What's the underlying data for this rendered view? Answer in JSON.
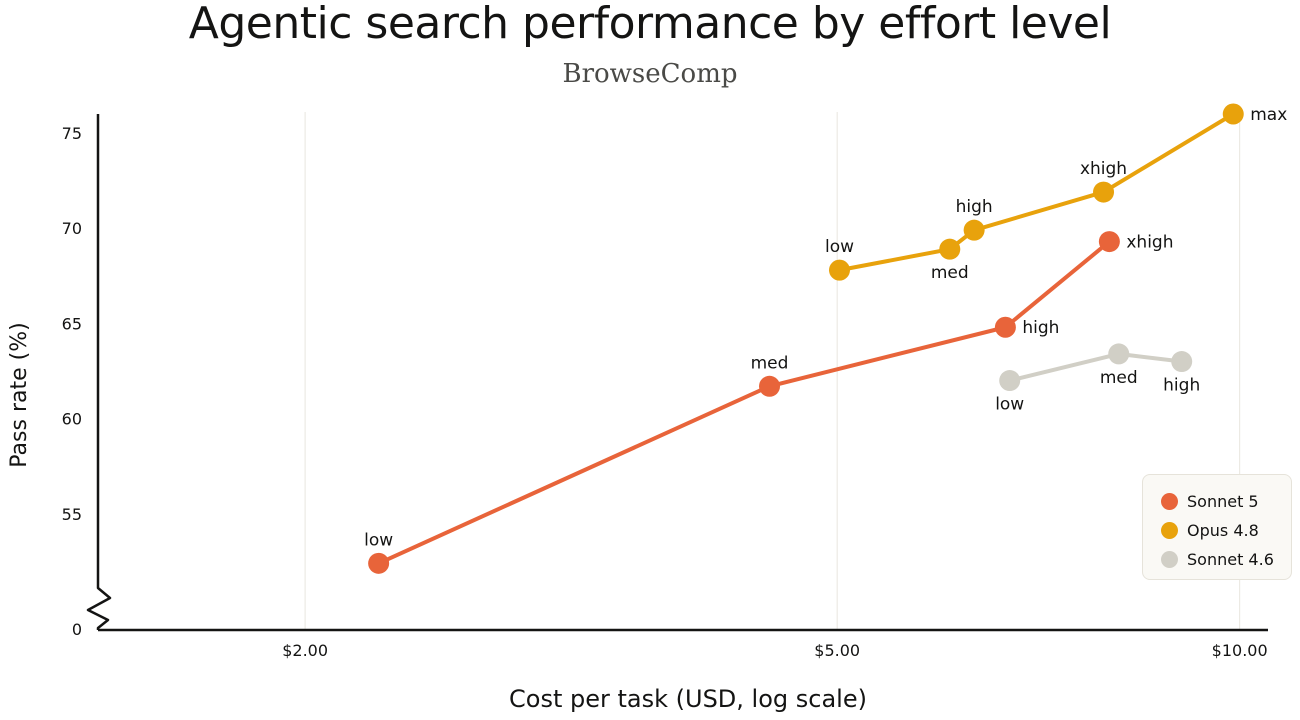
{
  "chart_data": {
    "type": "line",
    "title": "Agentic search performance by effort level",
    "subtitle": "BrowseComp",
    "xlabel": "Cost per task (USD, log scale)",
    "ylabel": "Pass rate (%)",
    "x_scale": "log",
    "xlim": [
      1.4,
      10.5
    ],
    "ylim": [
      51,
      76
    ],
    "y_axis_break": true,
    "x_ticks": [
      {
        "value": 2.0,
        "label": "$2.00"
      },
      {
        "value": 5.0,
        "label": "$5.00"
      },
      {
        "value": 10.0,
        "label": "$10.00"
      }
    ],
    "y_ticks": [
      {
        "value": 55,
        "label": "55"
      },
      {
        "value": 60,
        "label": "60"
      },
      {
        "value": 65,
        "label": "65"
      },
      {
        "value": 70,
        "label": "70"
      },
      {
        "value": 75,
        "label": "75"
      }
    ],
    "y_break_label": "0",
    "grid": "vertical",
    "legend": "bottom-right",
    "series": [
      {
        "name": "Sonnet 5",
        "color": "#e8643a",
        "points": [
          {
            "x": 2.27,
            "y": 52.4,
            "label": "low",
            "label_pos": "above"
          },
          {
            "x": 4.45,
            "y": 61.7,
            "label": "med",
            "label_pos": "above"
          },
          {
            "x": 6.68,
            "y": 64.8,
            "label": "high",
            "label_pos": "right"
          },
          {
            "x": 7.99,
            "y": 69.3,
            "label": "xhigh",
            "label_pos": "right"
          }
        ]
      },
      {
        "name": "Opus 4.8",
        "color": "#e8a20c",
        "points": [
          {
            "x": 5.02,
            "y": 67.8,
            "label": "low",
            "label_pos": "above"
          },
          {
            "x": 6.07,
            "y": 68.9,
            "label": "med",
            "label_pos": "below"
          },
          {
            "x": 6.33,
            "y": 69.9,
            "label": "high",
            "label_pos": "above"
          },
          {
            "x": 7.91,
            "y": 71.9,
            "label": "xhigh",
            "label_pos": "above"
          },
          {
            "x": 9.89,
            "y": 76.0,
            "label": "max",
            "label_pos": "right"
          }
        ]
      },
      {
        "name": "Sonnet 4.6",
        "color": "#d1cfc6",
        "points": [
          {
            "x": 6.73,
            "y": 62.0,
            "label": "low",
            "label_pos": "below"
          },
          {
            "x": 8.12,
            "y": 63.4,
            "label": "med",
            "label_pos": "below"
          },
          {
            "x": 9.05,
            "y": 63.0,
            "label": "high",
            "label_pos": "below"
          }
        ]
      }
    ]
  }
}
